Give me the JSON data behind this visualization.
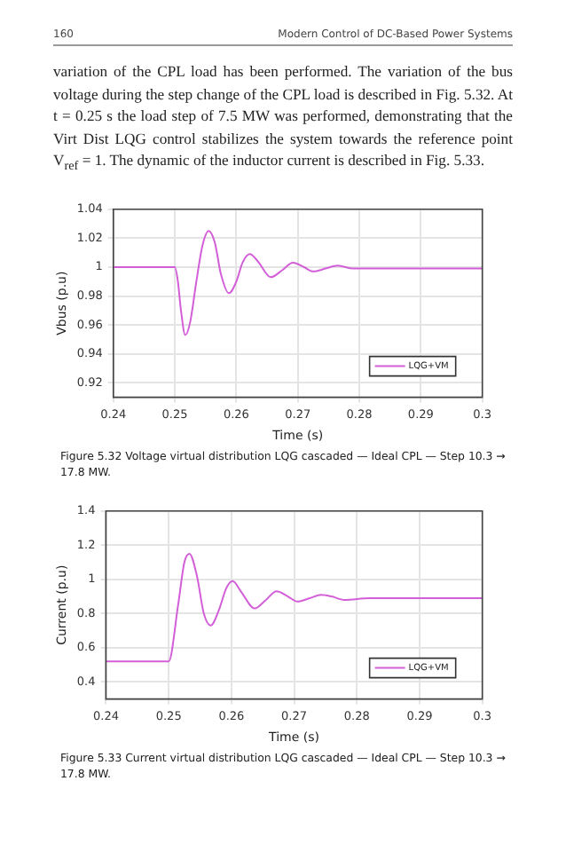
{
  "chart_data": [
    {
      "type": "line",
      "xlabel": "Time (s)",
      "ylabel": "Vbus (p.u)",
      "annotations": [
        "160",
        "Modern Control of DC-Based Power Systems",
        "variation of the CPL load has been performed. The variation of the bus voltage during the step change of the CPL load is described in Fig. 5.32. At t = 0.25 s the load step of 7.5 MW was performed, demonstrating that the Virt Dist LQG control stabilizes the system towards the reference point V$_{ref}$ = 1. The dynamic of the inductor current is described in Fig. 5.33.",
        "Figure 5.32 Voltage virtual distribution LQG cascaded — Ideal CPL — Step 10.3 → 17.8 MW."
      ],
      "x": [
        0.24,
        0.25,
        0.2505,
        0.251,
        0.2517,
        0.2525,
        0.2535,
        0.2545,
        0.2555,
        0.2565,
        0.2575,
        0.2588,
        0.26,
        0.261,
        0.2622,
        0.2635,
        0.2656,
        0.2675,
        0.2692,
        0.271,
        0.2725,
        0.2745,
        0.2765,
        0.279,
        0.282,
        0.29,
        0.3
      ],
      "series": [
        {
          "name": "LQG+VM",
          "color": "#d35fd8",
          "values": [
            1,
            1,
            0.99,
            0.97,
            0.953,
            0.962,
            0.99,
            1.015,
            1.025,
            1.017,
            0.995,
            0.982,
            0.99,
            1.003,
            1.009,
            1.004,
            0.993,
            0.998,
            1.003,
            1.0,
            0.997,
            0.999,
            1.001,
            0.999,
            0.999,
            0.999,
            0.999
          ]
        }
      ],
      "xlim": [
        0.24,
        0.3
      ],
      "xticks": [
        0.24,
        0.25,
        0.26,
        0.27,
        0.28,
        0.29,
        0.3
      ],
      "ylim": [
        0.91,
        1.04
      ],
      "yticks": [
        0.92,
        0.94,
        0.96,
        0.98,
        1,
        1.02,
        1.04
      ],
      "grid": true,
      "legend": "bottom right",
      "marker": "none",
      "line_style": "solid"
    },
    {
      "type": "line",
      "xlabel": "Time (s)",
      "ylabel": "Current (p.u)",
      "annotations": [
        "Figure 5.33 Current virtual distribution LQG cascaded — Ideal CPL — Step 10.3 → 17.8 MW."
      ],
      "x": [
        0.24,
        0.25,
        0.2515,
        0.2525,
        0.2533,
        0.2545,
        0.2556,
        0.2567,
        0.258,
        0.2592,
        0.2602,
        0.2615,
        0.2637,
        0.2655,
        0.2672,
        0.269,
        0.2705,
        0.2725,
        0.2743,
        0.276,
        0.278,
        0.282,
        0.29,
        0.3
      ],
      "series": [
        {
          "name": "LQG+VM",
          "color": "#d35fd8",
          "values": [
            0.52,
            0.52,
            0.85,
            1.1,
            1.15,
            1.02,
            0.8,
            0.73,
            0.82,
            0.95,
            0.99,
            0.93,
            0.83,
            0.88,
            0.93,
            0.9,
            0.87,
            0.89,
            0.91,
            0.9,
            0.88,
            0.89,
            0.89,
            0.89
          ]
        }
      ],
      "xlim": [
        0.24,
        0.3
      ],
      "xticks": [
        0.24,
        0.25,
        0.26,
        0.27,
        0.28,
        0.29,
        0.3
      ],
      "ylim": [
        0.3,
        1.4
      ],
      "yticks": [
        0.4,
        0.6,
        0.8,
        1,
        1.2,
        1.4
      ],
      "grid": true,
      "legend": "bottom right",
      "marker": "none",
      "line_style": "solid"
    }
  ]
}
